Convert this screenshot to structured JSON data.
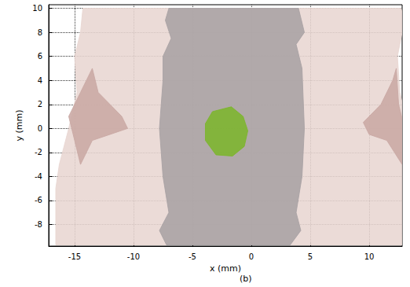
{
  "chart_data": {
    "type": "polygon",
    "xlabel": "x (mm)",
    "ylabel": "y (mm)",
    "caption": "(b)",
    "xlim": [
      -17.2,
      12.8
    ],
    "ylim": [
      -9.8,
      10.3
    ],
    "xticks": [
      -15,
      -10,
      -5,
      0,
      5,
      10
    ],
    "yticks": [
      -8,
      -6,
      -4,
      -2,
      0,
      2,
      4,
      6,
      8,
      10
    ],
    "grid": true,
    "series": [
      {
        "color": "#e8d6d1",
        "values": [
          [
            -14.3,
            10
          ],
          [
            12.7,
            10
          ],
          [
            13,
            9
          ],
          [
            12.4,
            6
          ],
          [
            12.6,
            3
          ],
          [
            13.3,
            0
          ],
          [
            13,
            -4
          ],
          [
            12.8,
            -9.7
          ],
          [
            -16.6,
            -9.7
          ],
          [
            -16.6,
            -5
          ],
          [
            -16.3,
            -3
          ],
          [
            -15.5,
            0
          ],
          [
            -14.8,
            3
          ],
          [
            -15,
            6
          ],
          [
            -14.5,
            8
          ]
        ]
      },
      {
        "color": "#c9a9a4",
        "values": [
          [
            -13.5,
            5
          ],
          [
            -13,
            3
          ],
          [
            -11,
            1
          ],
          [
            -10.5,
            0
          ],
          [
            -12,
            -0.5
          ],
          [
            -13.5,
            -1
          ],
          [
            -14.5,
            -3
          ],
          [
            -15,
            -1
          ],
          [
            -15.5,
            1
          ],
          [
            -14.5,
            3
          ]
        ]
      },
      {
        "color": "#c9a9a4",
        "values": [
          [
            12.3,
            5
          ],
          [
            12.5,
            2
          ],
          [
            13,
            0
          ],
          [
            12.8,
            -3
          ],
          [
            11.5,
            -1
          ],
          [
            10,
            -0.5
          ],
          [
            9.5,
            0.5
          ],
          [
            11,
            2
          ],
          [
            12,
            4
          ]
        ]
      },
      {
        "color": "#a9a2a4",
        "values": [
          [
            -7,
            10
          ],
          [
            4,
            10
          ],
          [
            4.5,
            8
          ],
          [
            3.8,
            7
          ],
          [
            4.3,
            5
          ],
          [
            4.5,
            0
          ],
          [
            4.3,
            -4
          ],
          [
            3.8,
            -7
          ],
          [
            4.2,
            -8.5
          ],
          [
            3.3,
            -9.7
          ],
          [
            -7.2,
            -9.7
          ],
          [
            -7.8,
            -8.5
          ],
          [
            -7,
            -7
          ],
          [
            -7.5,
            -4
          ],
          [
            -7.8,
            0
          ],
          [
            -7.5,
            4
          ],
          [
            -7.5,
            6
          ],
          [
            -6.8,
            7.5
          ],
          [
            -7.3,
            9
          ]
        ]
      },
      {
        "color": "#7cb52c",
        "values": [
          [
            -3.3,
            1.4
          ],
          [
            -1.7,
            1.8
          ],
          [
            -0.7,
            1
          ],
          [
            -0.3,
            -0.2
          ],
          [
            -0.6,
            -1.5
          ],
          [
            -1.6,
            -2.3
          ],
          [
            -3,
            -2.2
          ],
          [
            -3.9,
            -1
          ],
          [
            -3.9,
            0.4
          ]
        ]
      }
    ]
  }
}
